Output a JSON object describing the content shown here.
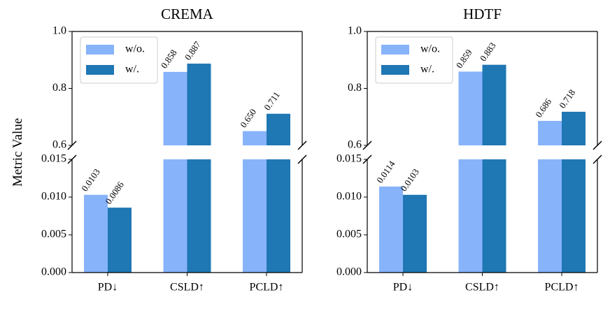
{
  "chart_data": [
    {
      "type": "bar",
      "title": "CREMA",
      "ylabel": "Metric Value",
      "categories": [
        "PD↓",
        "CSLD↑",
        "PCLD↑"
      ],
      "series": [
        {
          "name": "w/o.",
          "color": "#87b3fb",
          "values": [
            0.0103,
            0.858,
            0.65
          ],
          "value_labels": [
            "0.0103",
            "0.858",
            "0.650"
          ]
        },
        {
          "name": "w/.",
          "color": "#1f77b4",
          "values": [
            0.0086,
            0.887,
            0.711
          ],
          "value_labels": [
            "0.0086",
            "0.887",
            "0.711"
          ]
        }
      ],
      "panels": [
        {
          "ylim": [
            0.6,
            1.0
          ],
          "yticks": [
            0.6,
            0.8,
            {
              "value": 1.0,
              "label": "1.0"
            }
          ]
        },
        {
          "ylim": [
            0,
            0.015
          ],
          "yticks": [
            {
              "value": 0,
              "label": "0.000"
            },
            0.005,
            {
              "value": 0.01,
              "label": "0.010"
            },
            0.015
          ]
        }
      ],
      "legend": "upper left"
    },
    {
      "type": "bar",
      "title": "HDTF",
      "categories": [
        "PD↓",
        "CSLD↑",
        "PCLD↑"
      ],
      "series": [
        {
          "name": "w/o.",
          "color": "#87b3fb",
          "values": [
            0.0114,
            0.859,
            0.686
          ],
          "value_labels": [
            "0.0114",
            "0.859",
            "0.686"
          ]
        },
        {
          "name": "w/.",
          "color": "#1f77b4",
          "values": [
            0.0103,
            0.883,
            0.718
          ],
          "value_labels": [
            "0.0103",
            "0.883",
            "0.718"
          ]
        }
      ],
      "panels": [
        {
          "ylim": [
            0.6,
            1.0
          ],
          "yticks": [
            0.6,
            0.8,
            {
              "value": 1.0,
              "label": "1.0"
            }
          ]
        },
        {
          "ylim": [
            0,
            0.015
          ],
          "yticks": [
            {
              "value": 0,
              "label": "0.000"
            },
            0.005,
            {
              "value": 0.01,
              "label": "0.010"
            },
            0.015
          ]
        }
      ],
      "legend": "upper left"
    }
  ]
}
